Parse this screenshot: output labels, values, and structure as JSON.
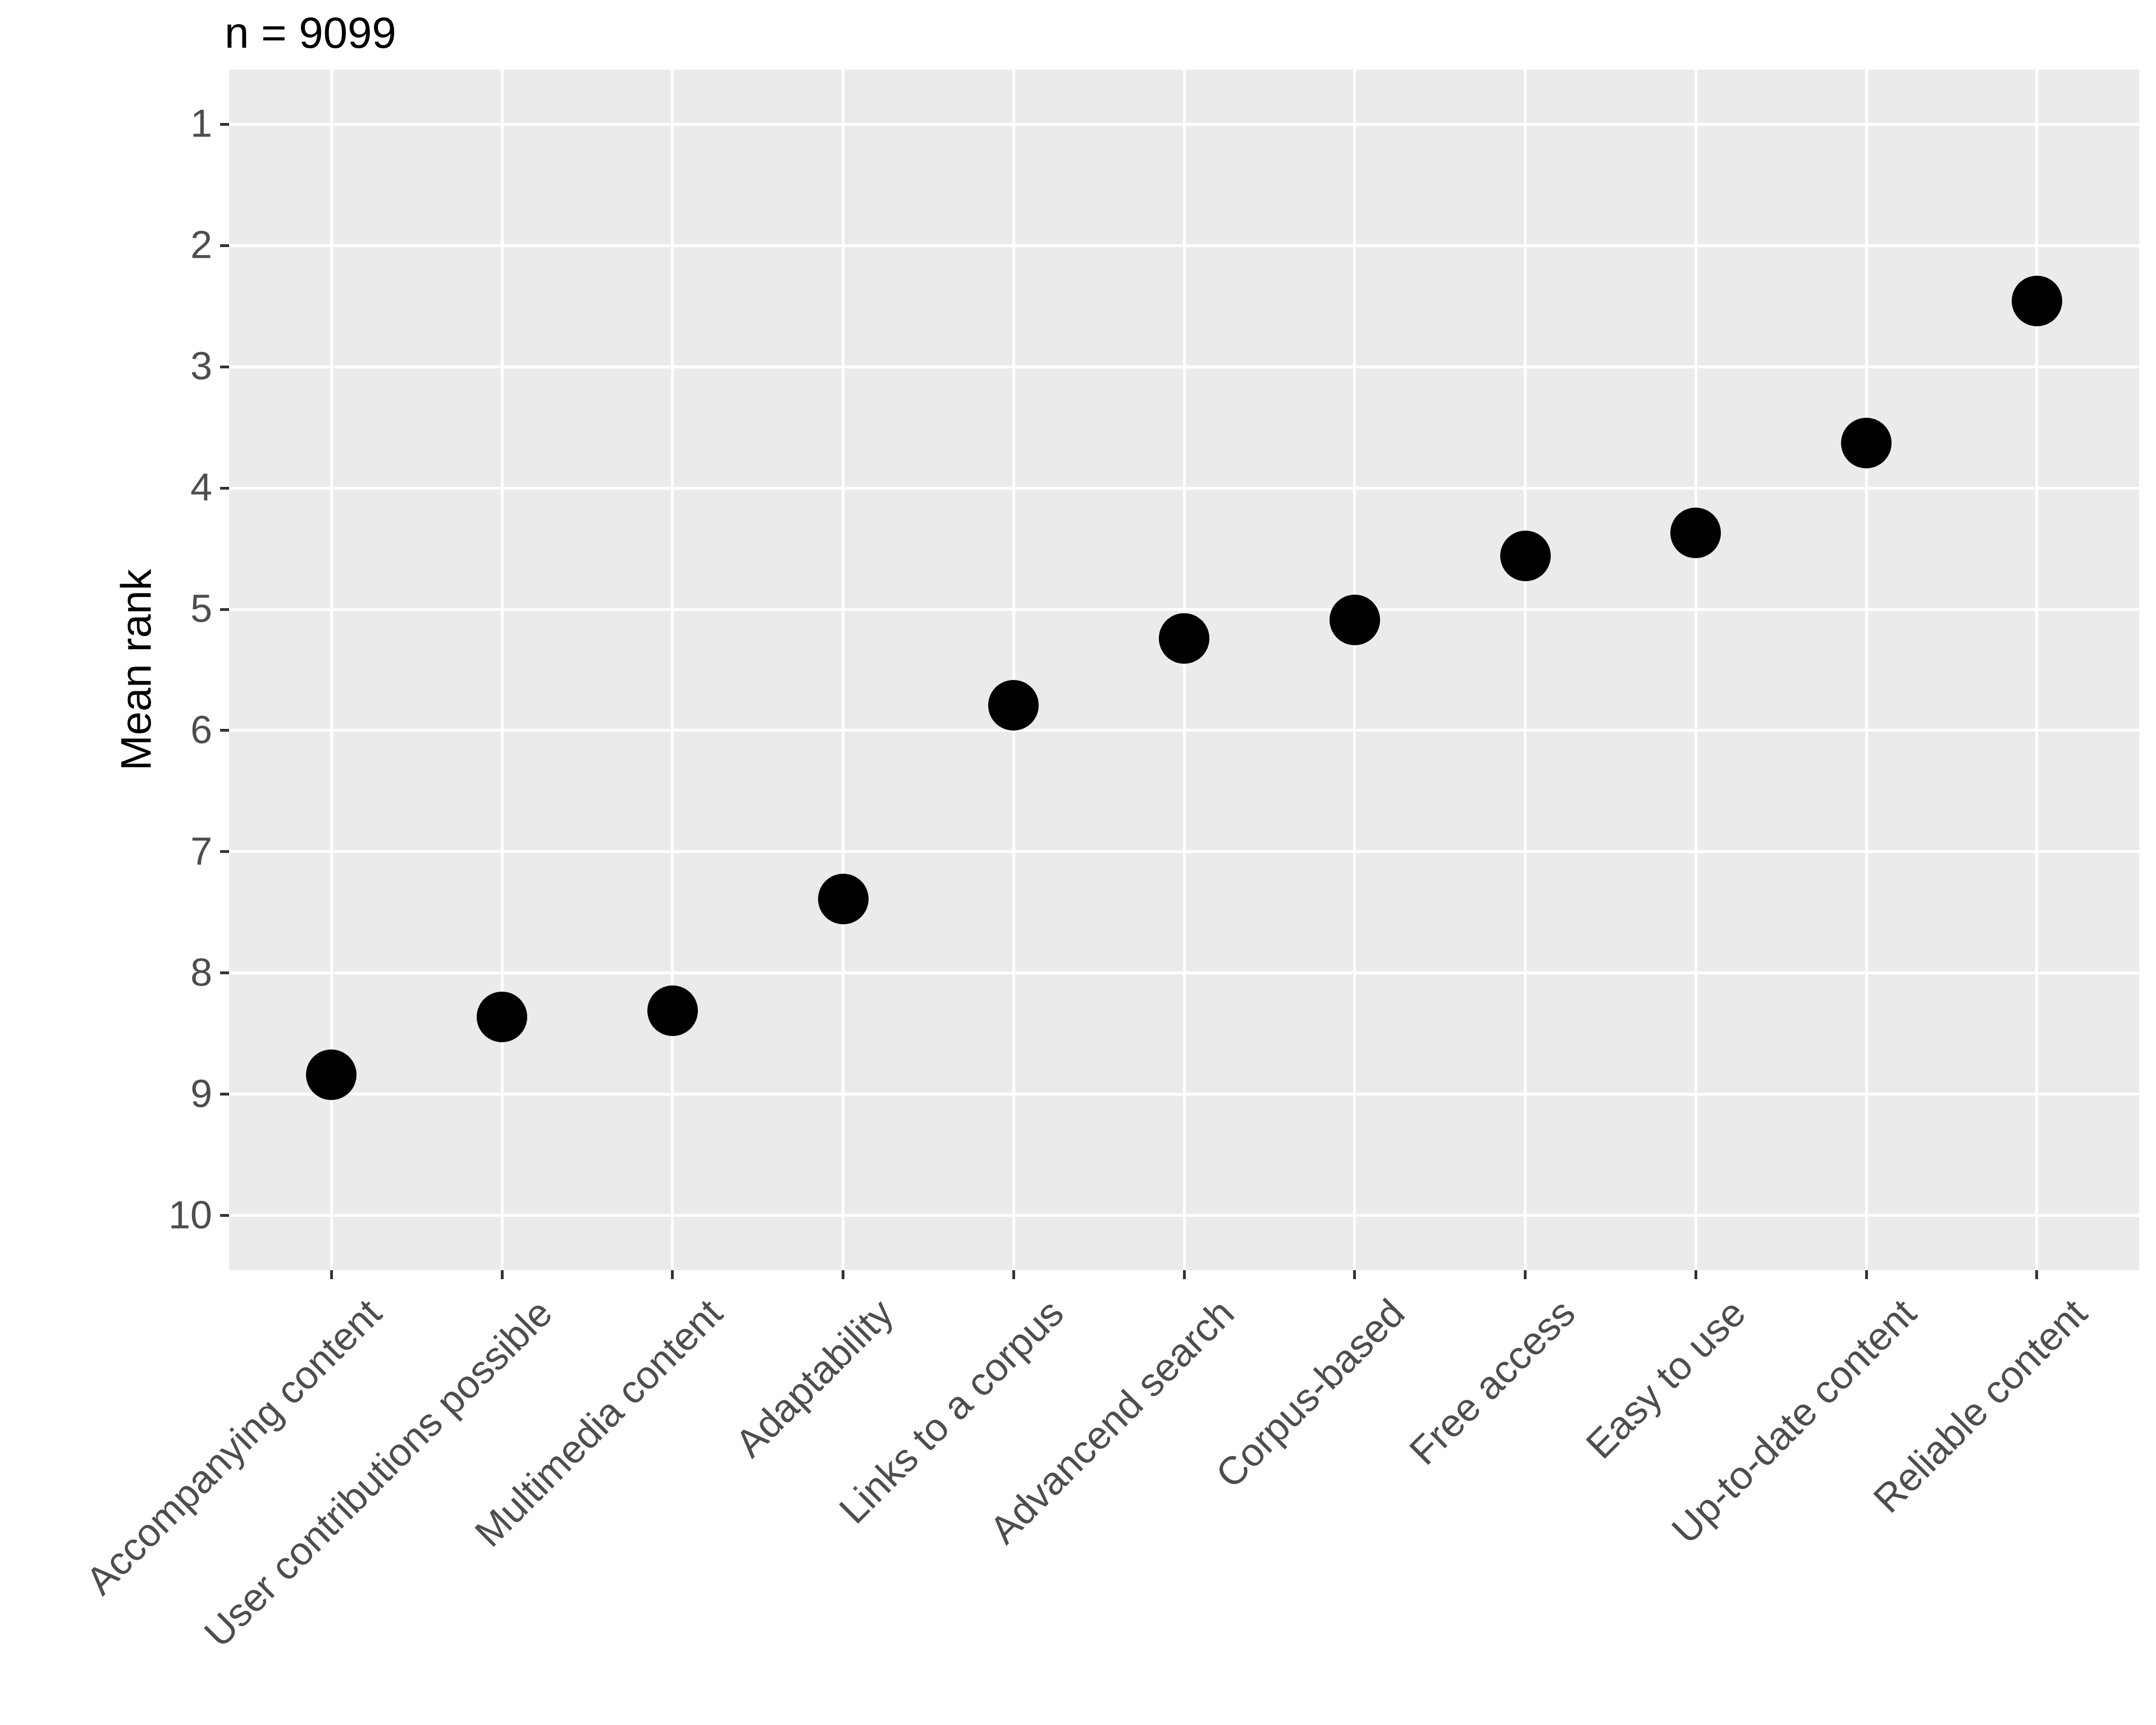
{
  "title": "n = 9099",
  "chart_data": {
    "type": "scatter",
    "title": "n = 9099",
    "xlabel": "",
    "ylabel": "Mean rank",
    "categories": [
      "Accompanying content",
      "User contributions possible",
      "Multimedia content",
      "Adaptability",
      "Links to a corpus",
      "Advancend search",
      "Corpus-based",
      "Free access",
      "Easy to use",
      "Up-to-date content",
      "Reliable content"
    ],
    "values": [
      8.84,
      8.36,
      8.31,
      7.39,
      5.79,
      5.24,
      5.09,
      4.56,
      4.37,
      3.63,
      2.46
    ],
    "y_axis": {
      "ticks": [
        1,
        2,
        3,
        4,
        5,
        6,
        7,
        8,
        9,
        10
      ],
      "range": [
        1,
        10
      ],
      "reversed": true
    },
    "grid": "major",
    "legend": "none",
    "x_label_angle_deg": 45,
    "colors": {
      "background": "#FFFFFF",
      "panel_background": "#EBEBEB",
      "gridline": "#FFFFFF",
      "point": "#000000",
      "axis_text": "#4D4D4D",
      "axis_tick": "#333333",
      "title_text": "#000000"
    }
  }
}
